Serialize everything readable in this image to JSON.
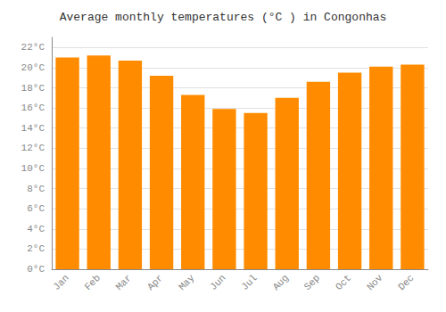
{
  "chart_data": {
    "type": "bar",
    "title": "Average monthly temperatures (°C ) in Congonhas",
    "categories": [
      "Jan",
      "Feb",
      "Mar",
      "Apr",
      "May",
      "Jun",
      "Jul",
      "Aug",
      "Sep",
      "Oct",
      "Nov",
      "Dec"
    ],
    "values": [
      21.0,
      21.2,
      20.7,
      19.2,
      17.3,
      15.9,
      15.5,
      17.0,
      18.6,
      19.5,
      20.1,
      20.3
    ],
    "color": "#FF8C00",
    "ylim": [
      0,
      23
    ],
    "yticks": [
      {
        "value": 0,
        "label": "0°C"
      },
      {
        "value": 2,
        "label": "2°C"
      },
      {
        "value": 4,
        "label": "4°C"
      },
      {
        "value": 6,
        "label": "6°C"
      },
      {
        "value": 8,
        "label": "8°C"
      },
      {
        "value": 10,
        "label": "10°C"
      },
      {
        "value": 12,
        "label": "12°C"
      },
      {
        "value": 14,
        "label": "14°C"
      },
      {
        "value": 16,
        "label": "16°C"
      },
      {
        "value": 18,
        "label": "18°C"
      },
      {
        "value": 20,
        "label": "20°C"
      },
      {
        "value": 22,
        "label": "22°C"
      }
    ],
    "grid": true
  }
}
